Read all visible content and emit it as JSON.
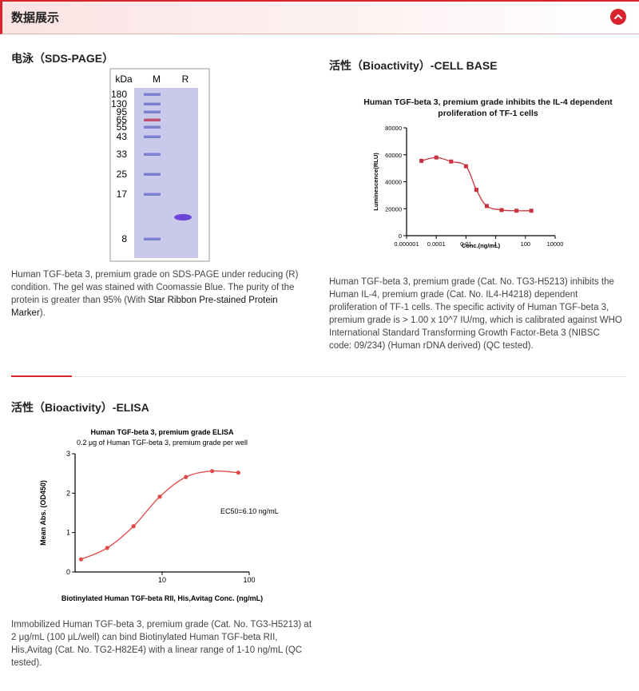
{
  "header": {
    "title": "数据展示"
  },
  "sections": [
    {
      "title": "电泳（SDS-PAGE）",
      "text": "Human TGF-beta 3, premium grade on SDS-PAGE under reducing (R) condition. The gel was stained with Coomassie Blue. The purity of the protein is greater than 95% (With ",
      "link": "Star Ribbon Pre-stained Protein Marker",
      "text_end": ")."
    },
    {
      "title": "活性（Bioactivity）-CELL BASE",
      "text": "Human TGF-beta 3, premium grade (Cat. No. TG3-H5213) inhibits the Human IL-4, premium grade (Cat. No. IL4-H4218) dependent proliferation of TF-1 cells. The specific activity of Human TGF-beta 3, premium grade is > 1.00 x 10^7 IU/mg, which is calibrated against WHO International Standard Transforming Growth Factor-Beta 3 (NIBSC code: 09/234) (Human rDNA derived) (QC tested)."
    },
    {
      "title": "活性（Bioactivity）-ELISA",
      "text": "Immobilized Human TGF-beta 3, premium grade (Cat. No. TG3-H5213) at 2 μg/mL (100 μL/well) can bind Biotinylated Human TGF-beta RII, His,Avitag (Cat. No. TG2-H82E4) with a linear range of 1-10 ng/mL (QC tested)."
    }
  ],
  "gel": {
    "unit": "kDa",
    "lanes": [
      "M",
      "R"
    ],
    "markers": [
      "180",
      "130",
      "95",
      "65",
      "55",
      "43",
      "33",
      "25",
      "17",
      "8"
    ]
  },
  "chart_data": [
    {
      "type": "line",
      "title": "Human TGF-beta 3, premium grade inhibits the IL-4 dependent proliferation of TF-1 cells",
      "x_label": "Conc.(ng/mL)",
      "y_label": "Luminescence(RLU)",
      "xscale": "log",
      "x": [
        1e-05,
        0.0001,
        0.001,
        0.01,
        0.05,
        0.25,
        2.5,
        25,
        250
      ],
      "values": [
        55500,
        58000,
        55000,
        51500,
        34000,
        22000,
        19000,
        18500,
        18500
      ],
      "color": "#c8323c",
      "marker": "square",
      "xlim": [
        1e-06,
        10000
      ],
      "xticks": [
        1e-06,
        0.0001,
        0.01,
        1,
        100,
        10000
      ],
      "ylim": [
        0,
        80000
      ],
      "yticks": [
        0,
        20000,
        40000,
        60000,
        80000
      ]
    },
    {
      "type": "line",
      "title": "Human TGF-beta 3, premium grade ELISA",
      "subtitle": "0.2 μg of Human TGF-beta 3, premium grade per well",
      "annotation": "EC50=6.10 ng/mL",
      "x_label": "Biotinylated Human TGF-beta RII, His,Avitag Conc. (ng/mL)",
      "y_label": "Mean Abs. (OD450)",
      "xscale": "log",
      "x": [
        1.17,
        2.34,
        4.69,
        9.38,
        18.75,
        37.5,
        75
      ],
      "values": [
        0.32,
        0.61,
        1.16,
        1.91,
        2.41,
        2.56,
        2.52
      ],
      "color": "#e04a4a",
      "marker": "circle",
      "xlim": [
        1,
        100
      ],
      "xticks": [
        10,
        100
      ],
      "ylim": [
        0,
        3
      ],
      "yticks": [
        0,
        1,
        2,
        3
      ]
    }
  ]
}
